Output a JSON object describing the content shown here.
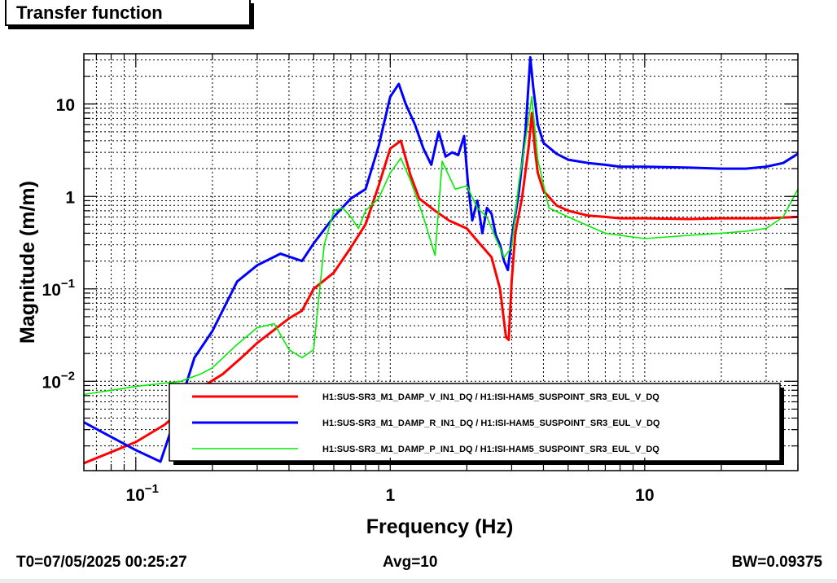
{
  "title": "Transfer function",
  "footer": {
    "t0": "T0=07/05/2025 00:25:27",
    "avg": "Avg=10",
    "bw": "BW=0.09375"
  },
  "chart_data": {
    "type": "line",
    "title": "Transfer function",
    "xlabel": "Frequency (Hz)",
    "ylabel": "Magnitude (m/m)",
    "x_scale": "log",
    "y_scale": "log",
    "xlim": [
      0.0625,
      40
    ],
    "ylim": [
      0.00108,
      35
    ],
    "x_ticks": [
      {
        "value": 0.1,
        "label": "10",
        "exp": "−1"
      },
      {
        "value": 1,
        "label": "1",
        "exp": ""
      },
      {
        "value": 10,
        "label": "10",
        "exp": ""
      }
    ],
    "y_ticks": [
      {
        "value": 0.01,
        "label": "10",
        "exp": "−2"
      },
      {
        "value": 0.1,
        "label": "10",
        "exp": "−1"
      },
      {
        "value": 1,
        "label": "1",
        "exp": ""
      },
      {
        "value": 10,
        "label": "10",
        "exp": ""
      }
    ],
    "grid": true,
    "legend_position": "bottom",
    "series": [
      {
        "name": "H1:SUS-SR3_M1_DAMP_V_IN1_DQ / H1:ISI-HAM5_SUSPOINT_SR3_EUL_V_DQ",
        "color": "#ff0000",
        "width": 3,
        "x": [
          0.0625,
          0.1,
          0.13,
          0.15,
          0.18,
          0.22,
          0.26,
          0.3,
          0.35,
          0.4,
          0.45,
          0.5,
          0.6,
          0.7,
          0.8,
          0.9,
          1.0,
          1.1,
          1.2,
          1.3,
          1.5,
          1.7,
          2.0,
          2.2,
          2.5,
          2.7,
          2.85,
          2.92,
          3.0,
          3.1,
          3.3,
          3.5,
          3.6,
          3.7,
          3.8,
          4.0,
          4.5,
          5,
          6,
          7,
          8,
          10,
          15,
          20,
          30,
          40
        ],
        "y": [
          0.0013,
          0.0022,
          0.0034,
          0.0048,
          0.0085,
          0.012,
          0.018,
          0.026,
          0.036,
          0.048,
          0.058,
          0.1,
          0.15,
          0.28,
          0.5,
          1.3,
          3.3,
          4.0,
          1.7,
          0.95,
          0.7,
          0.55,
          0.45,
          0.33,
          0.22,
          0.1,
          0.03,
          0.028,
          0.12,
          0.4,
          1.0,
          3.5,
          8.0,
          3.3,
          1.8,
          1.15,
          0.8,
          0.7,
          0.62,
          0.6,
          0.58,
          0.58,
          0.57,
          0.58,
          0.58,
          0.6
        ]
      },
      {
        "name": "H1:SUS-SR3_M1_DAMP_R_IN1_DQ / H1:ISI-HAM5_SUSPOINT_SR3_EUL_V_DQ",
        "color": "#0000ff",
        "width": 3,
        "x": [
          0.0625,
          0.08,
          0.1,
          0.125,
          0.15,
          0.17,
          0.2,
          0.25,
          0.3,
          0.37,
          0.45,
          0.5,
          0.6,
          0.7,
          0.8,
          0.9,
          1.0,
          1.08,
          1.15,
          1.25,
          1.35,
          1.45,
          1.55,
          1.65,
          1.75,
          1.85,
          1.95,
          2.02,
          2.1,
          2.2,
          2.3,
          2.4,
          2.5,
          2.6,
          2.7,
          2.8,
          2.9,
          3.0,
          3.2,
          3.4,
          3.55,
          3.65,
          3.8,
          4.0,
          4.5,
          5,
          6,
          7,
          8,
          10,
          15,
          20,
          25,
          30,
          35,
          40
        ],
        "y": [
          0.0036,
          0.0025,
          0.0018,
          0.00135,
          0.006,
          0.018,
          0.035,
          0.12,
          0.18,
          0.24,
          0.2,
          0.31,
          0.6,
          0.95,
          1.2,
          3.5,
          12,
          16.5,
          10,
          6.0,
          3.3,
          2.2,
          5.0,
          2.7,
          3.0,
          2.8,
          4.5,
          1.4,
          0.55,
          0.9,
          0.4,
          0.75,
          0.65,
          0.38,
          0.3,
          0.2,
          0.16,
          0.35,
          1.1,
          5.0,
          32,
          15,
          6,
          3.8,
          2.9,
          2.5,
          2.3,
          2.2,
          2.1,
          2.1,
          2.05,
          2.0,
          2.0,
          2.1,
          2.3,
          2.9
        ]
      },
      {
        "name": "H1:SUS-SR3_M1_DAMP_P_IN1_DQ / H1:ISI-HAM5_SUSPOINT_SR3_EUL_V_DQ",
        "color": "#00ee00",
        "width": 1.6,
        "x": [
          0.0625,
          0.1,
          0.15,
          0.18,
          0.2,
          0.25,
          0.3,
          0.35,
          0.4,
          0.45,
          0.5,
          0.55,
          0.6,
          0.65,
          0.7,
          0.75,
          0.8,
          0.9,
          1.0,
          1.1,
          1.2,
          1.35,
          1.5,
          1.6,
          1.8,
          2.0,
          2.2,
          2.4,
          2.6,
          2.8,
          3.0,
          3.2,
          3.4,
          3.6,
          3.8,
          4.2,
          5,
          6,
          7,
          8,
          10,
          15,
          20,
          25,
          30,
          35,
          40
        ],
        "y": [
          0.0072,
          0.0088,
          0.01,
          0.012,
          0.014,
          0.025,
          0.038,
          0.042,
          0.022,
          0.018,
          0.022,
          0.3,
          0.7,
          0.75,
          0.6,
          0.45,
          0.7,
          0.95,
          1.8,
          2.6,
          1.5,
          0.6,
          0.23,
          2.4,
          1.2,
          1.3,
          0.75,
          0.6,
          0.35,
          0.22,
          0.28,
          1.4,
          4.0,
          12,
          2.5,
          0.75,
          0.6,
          0.48,
          0.4,
          0.38,
          0.35,
          0.38,
          0.4,
          0.42,
          0.45,
          0.6,
          1.2
        ]
      }
    ]
  }
}
